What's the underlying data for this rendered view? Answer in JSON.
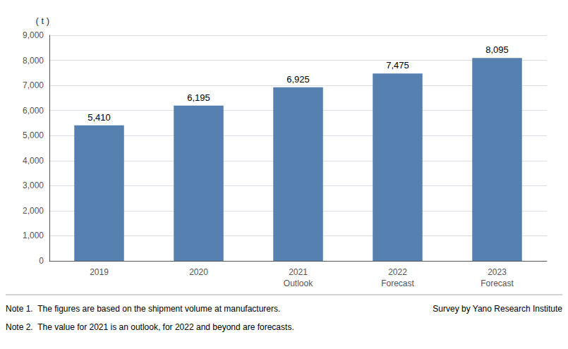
{
  "chart_data": {
    "type": "bar",
    "categories": [
      "2019",
      "2020",
      "2021\nOutlook",
      "2022\nForecast",
      "2023\nForecast"
    ],
    "values": [
      5410,
      6195,
      6925,
      7475,
      8095
    ],
    "value_labels": [
      "5,410",
      "6,195",
      "6,925",
      "7,475",
      "8,095"
    ],
    "data_labels": true,
    "color": "#5580b0",
    "ylabel": "( t )",
    "ylim": [
      0,
      9000
    ],
    "yticks": [
      0,
      {
        "value": 1000,
        "label": "1,000"
      },
      {
        "value": 2000,
        "label": "2,000"
      },
      {
        "value": 3000,
        "label": "3,000"
      },
      {
        "value": 4000,
        "label": "4,000"
      },
      {
        "value": 5000,
        "label": "5,000"
      },
      {
        "value": 6000,
        "label": "6,000"
      },
      {
        "value": 7000,
        "label": "7,000"
      },
      {
        "value": 8000,
        "label": "8,000"
      },
      {
        "value": 9000,
        "label": "9,000"
      }
    ],
    "grid": true,
    "annotations": [
      "Note 1.  The figures are based on the shipment volume at manufacturers.",
      "Note 2.  The value for 2021 is an outlook, for 2022 and beyond are forecasts.",
      "Survey by Yano Research Institute"
    ]
  }
}
